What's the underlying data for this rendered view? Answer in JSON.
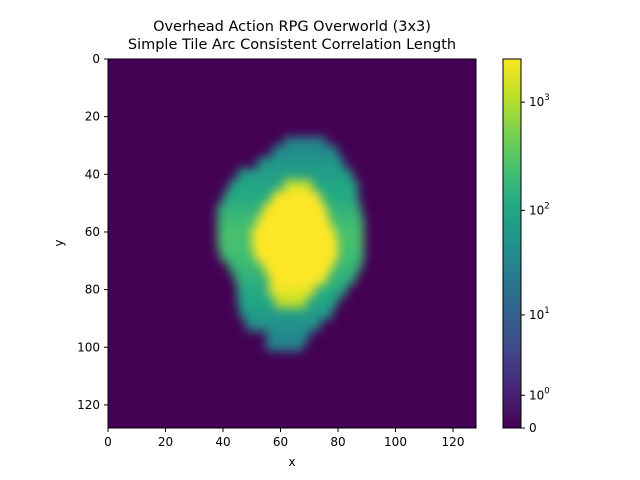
{
  "chart_data": {
    "type": "heatmap",
    "title_line1": "Overhead Action RPG Overworld (3x3)",
    "title_line2": "Simple Tile Arc Consistent Correlation Length",
    "xlabel": "x",
    "ylabel": "y",
    "grid_size": [
      128,
      128
    ],
    "xlim": [
      0,
      128
    ],
    "ylim": [
      128,
      0
    ],
    "x_ticks": [
      0,
      20,
      40,
      60,
      80,
      100,
      120
    ],
    "y_ticks": [
      0,
      20,
      40,
      60,
      80,
      100,
      120
    ],
    "x_tick_labels": [
      "0",
      "20",
      "40",
      "60",
      "80",
      "100",
      "120"
    ],
    "y_tick_labels": [
      "0",
      "20",
      "40",
      "60",
      "80",
      "100",
      "120"
    ],
    "colormap": "viridis",
    "color_scale": "symlog",
    "value_range": [
      0,
      2500
    ],
    "colorbar_ticks": [
      {
        "value": 0,
        "base": "0",
        "exp": ""
      },
      {
        "value": 1,
        "base": "10",
        "exp": "0"
      },
      {
        "value": 10,
        "base": "10",
        "exp": "1"
      },
      {
        "value": 100,
        "base": "10",
        "exp": "2"
      },
      {
        "value": 1000,
        "base": "10",
        "exp": "3"
      }
    ],
    "background_value": 0,
    "blob_rows": [
      {
        "y": 29,
        "x_start": 61,
        "x_end": 76,
        "value": 30
      },
      {
        "y": 32,
        "x_start": 57,
        "x_end": 80,
        "value": 40
      },
      {
        "y": 36,
        "x_start": 52,
        "x_end": 82,
        "value": 60
      },
      {
        "y": 40,
        "x_start": 45,
        "x_end": 85,
        "value": 80
      },
      {
        "y": 44,
        "x_start": 42,
        "x_end": 87,
        "value": 100
      },
      {
        "y": 48,
        "x_start": 40,
        "x_end": 87,
        "value": 120
      },
      {
        "y": 52,
        "x_start": 38,
        "x_end": 88,
        "value": 150
      },
      {
        "y": 56,
        "x_start": 38,
        "x_end": 89,
        "value": 200
      },
      {
        "y": 60,
        "x_start": 38,
        "x_end": 89,
        "value": 250
      },
      {
        "y": 64,
        "x_start": 38,
        "x_end": 89,
        "value": 250
      },
      {
        "y": 68,
        "x_start": 39,
        "x_end": 89,
        "value": 220
      },
      {
        "y": 72,
        "x_start": 42,
        "x_end": 88,
        "value": 180
      },
      {
        "y": 76,
        "x_start": 44,
        "x_end": 86,
        "value": 150
      },
      {
        "y": 80,
        "x_start": 45,
        "x_end": 83,
        "value": 120
      },
      {
        "y": 84,
        "x_start": 45,
        "x_end": 80,
        "value": 100
      },
      {
        "y": 88,
        "x_start": 46,
        "x_end": 78,
        "value": 70
      },
      {
        "y": 92,
        "x_start": 48,
        "x_end": 74,
        "value": 50
      },
      {
        "y": 96,
        "x_start": 55,
        "x_end": 70,
        "value": 40
      },
      {
        "y": 99,
        "x_start": 55,
        "x_end": 68,
        "value": 30
      }
    ],
    "core_rows": [
      {
        "y": 44,
        "x_start": 61,
        "x_end": 71,
        "value": 1500
      },
      {
        "y": 48,
        "x_start": 57,
        "x_end": 74,
        "value": 2500
      },
      {
        "y": 52,
        "x_start": 54,
        "x_end": 76,
        "value": 2500
      },
      {
        "y": 56,
        "x_start": 52,
        "x_end": 77,
        "value": 2500
      },
      {
        "y": 60,
        "x_start": 50,
        "x_end": 79,
        "value": 2500
      },
      {
        "y": 64,
        "x_start": 50,
        "x_end": 80,
        "value": 2500
      },
      {
        "y": 68,
        "x_start": 51,
        "x_end": 80,
        "value": 2500
      },
      {
        "y": 72,
        "x_start": 54,
        "x_end": 78,
        "value": 2500
      },
      {
        "y": 76,
        "x_start": 56,
        "x_end": 76,
        "value": 2500
      },
      {
        "y": 80,
        "x_start": 56,
        "x_end": 72,
        "value": 2000
      },
      {
        "y": 84,
        "x_start": 58,
        "x_end": 69,
        "value": 1200
      }
    ]
  }
}
